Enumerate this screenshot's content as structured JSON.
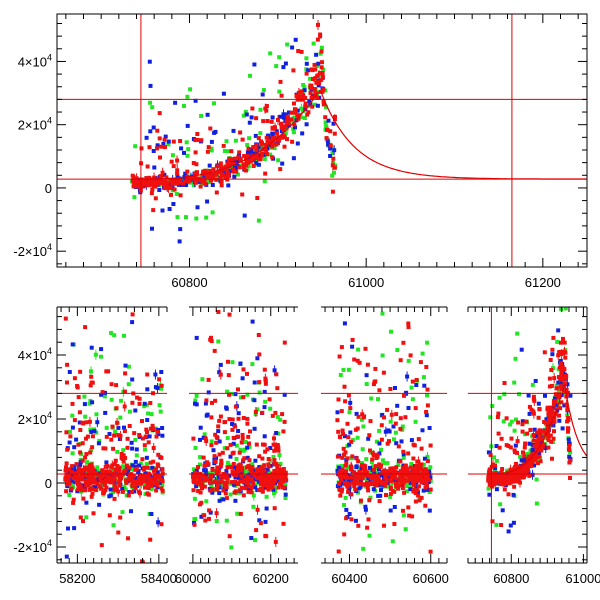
{
  "colors": {
    "green": "#22e622",
    "blue": "#1020e0",
    "red": "#f01010",
    "model": "#e00000",
    "refline": "#e00000",
    "axis": "#000000"
  },
  "chart_data": [
    {
      "type": "scatter",
      "name": "top-panel",
      "xlim": [
        60650,
        61250
      ],
      "ylim": [
        -25000,
        55000
      ],
      "xticks": [
        60800,
        61000,
        61200
      ],
      "xtick_labels": [
        "60800",
        "61000",
        "61200"
      ],
      "yticks": [
        -20000,
        0,
        20000,
        40000
      ],
      "ytick_labels": [
        {
          "sign": "-",
          "mant": "2×10",
          "exp": "4"
        },
        {
          "sign": "",
          "mant": "0",
          "exp": ""
        },
        {
          "sign": "",
          "mant": "2×10",
          "exp": "4"
        },
        {
          "sign": "",
          "mant": "4×10",
          "exp": "4"
        }
      ],
      "hlines": [
        2800,
        28000
      ],
      "vlines": [
        60745,
        61165
      ],
      "data_range": [
        60735,
        60965
      ],
      "series": [
        {
          "name": "green",
          "color_key": "green"
        },
        {
          "name": "blue",
          "color_key": "blue"
        },
        {
          "name": "red",
          "color_key": "red"
        }
      ],
      "model_curve": {
        "peak_x": 60948,
        "peak_y": 31000,
        "base_y": 2800,
        "decay_days": 38,
        "x_start": 60735,
        "x_end": 61250
      }
    },
    {
      "type": "scatter",
      "name": "bottom-panel",
      "ylim": [
        -25000,
        55000
      ],
      "yticks": [
        -20000,
        0,
        20000,
        40000
      ],
      "ytick_labels": [
        {
          "sign": "-",
          "mant": "2×10",
          "exp": "4"
        },
        {
          "sign": "",
          "mant": "0",
          "exp": ""
        },
        {
          "sign": "",
          "mant": "2×10",
          "exp": "4"
        },
        {
          "sign": "",
          "mant": "4×10",
          "exp": "4"
        }
      ],
      "hlines": [
        2800,
        28000
      ],
      "segments": [
        {
          "xlim": [
            58150,
            58420
          ],
          "ticks": [
            58200,
            58400
          ],
          "tick_labels": [
            "58200",
            "58400"
          ],
          "data_range": [
            58170,
            58410
          ],
          "vlines": []
        },
        {
          "xlim": [
            59990,
            60270
          ],
          "ticks": [
            60000,
            60200
          ],
          "tick_labels": [
            "60000",
            "60200"
          ],
          "data_range": [
            60000,
            60240
          ],
          "vlines": []
        },
        {
          "xlim": [
            60330,
            60640
          ],
          "ticks": [
            60400,
            60600
          ],
          "tick_labels": [
            "60400",
            "60600"
          ],
          "data_range": [
            60370,
            60600
          ],
          "vlines": []
        },
        {
          "xlim": [
            60680,
            61010
          ],
          "ticks": [
            60800,
            61000
          ],
          "tick_labels": [
            "60800",
            "61000"
          ],
          "data_range": [
            60735,
            60965
          ],
          "vlines": [
            60745
          ]
        }
      ]
    }
  ]
}
